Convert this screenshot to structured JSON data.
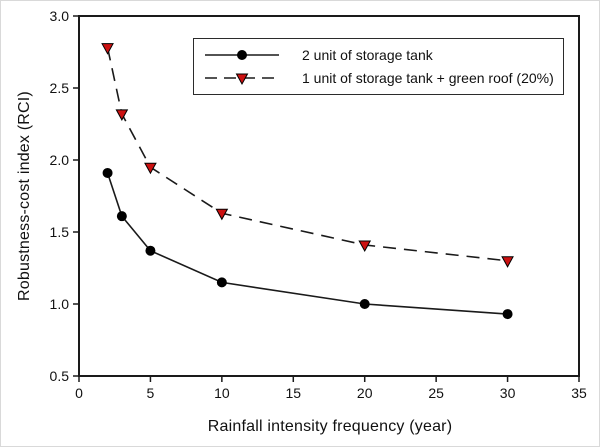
{
  "chart_data": {
    "type": "line",
    "title": "",
    "xlabel": "Rainfall intensity frequency (year)",
    "ylabel": "Robustness-cost index (RCI)",
    "xlim": [
      0,
      35
    ],
    "ylim": [
      0.5,
      3.0
    ],
    "x_ticks": [
      0,
      5,
      10,
      15,
      20,
      25,
      30,
      35
    ],
    "x_tick_labels": [
      "0",
      "5",
      "10",
      "15",
      "20",
      "25",
      "30",
      "35"
    ],
    "y_ticks": [
      0.5,
      1.0,
      1.5,
      2.0,
      2.5,
      3.0
    ],
    "y_tick_labels": [
      "0.5",
      "1.0",
      "1.5",
      "2.0",
      "2.5",
      "3.0"
    ],
    "grid": false,
    "legend_position": "upper-center-inside",
    "x": [
      2,
      3,
      5,
      10,
      20,
      30
    ],
    "series": [
      {
        "name": "2 unit of storage tank",
        "line_style": "solid",
        "line_color": "#1a1a1a",
        "marker": "circle",
        "marker_color": "#000000",
        "marker_edge_color": "#000000",
        "values": [
          1.91,
          1.61,
          1.37,
          1.15,
          1.0,
          0.93
        ]
      },
      {
        "name": "1 unit of storage tank + green roof (20%)",
        "line_style": "dashed",
        "line_color": "#1a1a1a",
        "marker": "triangle-down",
        "marker_color": "#cc1111",
        "marker_edge_color": "#000000",
        "values": [
          2.78,
          2.32,
          1.95,
          1.63,
          1.41,
          1.3
        ]
      }
    ],
    "axis_color": "#1a1a1a"
  }
}
